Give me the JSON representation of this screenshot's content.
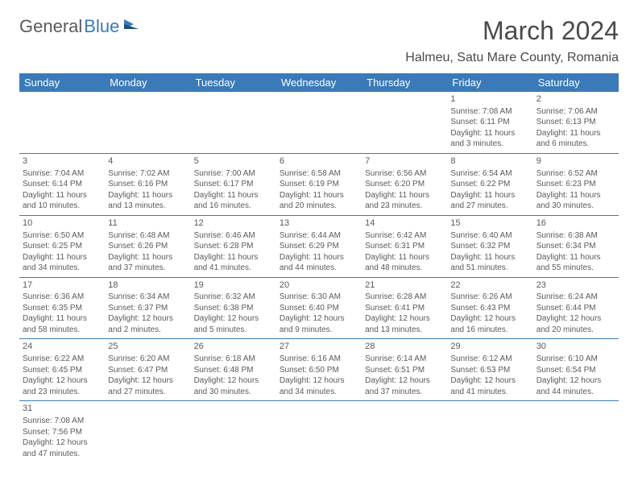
{
  "logo": {
    "text1": "General",
    "text2": "Blue"
  },
  "title": "March 2024",
  "location": "Halmeu, Satu Mare County, Romania",
  "colors": {
    "header_bg": "#3a7ab8",
    "header_fg": "#ffffff",
    "text": "#5a5a5a",
    "rule": "#3a7ab8"
  },
  "weekdays": [
    "Sunday",
    "Monday",
    "Tuesday",
    "Wednesday",
    "Thursday",
    "Friday",
    "Saturday"
  ],
  "weeks": [
    [
      null,
      null,
      null,
      null,
      null,
      {
        "n": "1",
        "sr": "Sunrise: 7:08 AM",
        "ss": "Sunset: 6:11 PM",
        "d1": "Daylight: 11 hours",
        "d2": "and 3 minutes."
      },
      {
        "n": "2",
        "sr": "Sunrise: 7:06 AM",
        "ss": "Sunset: 6:13 PM",
        "d1": "Daylight: 11 hours",
        "d2": "and 6 minutes."
      }
    ],
    [
      {
        "n": "3",
        "sr": "Sunrise: 7:04 AM",
        "ss": "Sunset: 6:14 PM",
        "d1": "Daylight: 11 hours",
        "d2": "and 10 minutes."
      },
      {
        "n": "4",
        "sr": "Sunrise: 7:02 AM",
        "ss": "Sunset: 6:16 PM",
        "d1": "Daylight: 11 hours",
        "d2": "and 13 minutes."
      },
      {
        "n": "5",
        "sr": "Sunrise: 7:00 AM",
        "ss": "Sunset: 6:17 PM",
        "d1": "Daylight: 11 hours",
        "d2": "and 16 minutes."
      },
      {
        "n": "6",
        "sr": "Sunrise: 6:58 AM",
        "ss": "Sunset: 6:19 PM",
        "d1": "Daylight: 11 hours",
        "d2": "and 20 minutes."
      },
      {
        "n": "7",
        "sr": "Sunrise: 6:56 AM",
        "ss": "Sunset: 6:20 PM",
        "d1": "Daylight: 11 hours",
        "d2": "and 23 minutes."
      },
      {
        "n": "8",
        "sr": "Sunrise: 6:54 AM",
        "ss": "Sunset: 6:22 PM",
        "d1": "Daylight: 11 hours",
        "d2": "and 27 minutes."
      },
      {
        "n": "9",
        "sr": "Sunrise: 6:52 AM",
        "ss": "Sunset: 6:23 PM",
        "d1": "Daylight: 11 hours",
        "d2": "and 30 minutes."
      }
    ],
    [
      {
        "n": "10",
        "sr": "Sunrise: 6:50 AM",
        "ss": "Sunset: 6:25 PM",
        "d1": "Daylight: 11 hours",
        "d2": "and 34 minutes."
      },
      {
        "n": "11",
        "sr": "Sunrise: 6:48 AM",
        "ss": "Sunset: 6:26 PM",
        "d1": "Daylight: 11 hours",
        "d2": "and 37 minutes."
      },
      {
        "n": "12",
        "sr": "Sunrise: 6:46 AM",
        "ss": "Sunset: 6:28 PM",
        "d1": "Daylight: 11 hours",
        "d2": "and 41 minutes."
      },
      {
        "n": "13",
        "sr": "Sunrise: 6:44 AM",
        "ss": "Sunset: 6:29 PM",
        "d1": "Daylight: 11 hours",
        "d2": "and 44 minutes."
      },
      {
        "n": "14",
        "sr": "Sunrise: 6:42 AM",
        "ss": "Sunset: 6:31 PM",
        "d1": "Daylight: 11 hours",
        "d2": "and 48 minutes."
      },
      {
        "n": "15",
        "sr": "Sunrise: 6:40 AM",
        "ss": "Sunset: 6:32 PM",
        "d1": "Daylight: 11 hours",
        "d2": "and 51 minutes."
      },
      {
        "n": "16",
        "sr": "Sunrise: 6:38 AM",
        "ss": "Sunset: 6:34 PM",
        "d1": "Daylight: 11 hours",
        "d2": "and 55 minutes."
      }
    ],
    [
      {
        "n": "17",
        "sr": "Sunrise: 6:36 AM",
        "ss": "Sunset: 6:35 PM",
        "d1": "Daylight: 11 hours",
        "d2": "and 58 minutes."
      },
      {
        "n": "18",
        "sr": "Sunrise: 6:34 AM",
        "ss": "Sunset: 6:37 PM",
        "d1": "Daylight: 12 hours",
        "d2": "and 2 minutes."
      },
      {
        "n": "19",
        "sr": "Sunrise: 6:32 AM",
        "ss": "Sunset: 6:38 PM",
        "d1": "Daylight: 12 hours",
        "d2": "and 5 minutes."
      },
      {
        "n": "20",
        "sr": "Sunrise: 6:30 AM",
        "ss": "Sunset: 6:40 PM",
        "d1": "Daylight: 12 hours",
        "d2": "and 9 minutes."
      },
      {
        "n": "21",
        "sr": "Sunrise: 6:28 AM",
        "ss": "Sunset: 6:41 PM",
        "d1": "Daylight: 12 hours",
        "d2": "and 13 minutes."
      },
      {
        "n": "22",
        "sr": "Sunrise: 6:26 AM",
        "ss": "Sunset: 6:43 PM",
        "d1": "Daylight: 12 hours",
        "d2": "and 16 minutes."
      },
      {
        "n": "23",
        "sr": "Sunrise: 6:24 AM",
        "ss": "Sunset: 6:44 PM",
        "d1": "Daylight: 12 hours",
        "d2": "and 20 minutes."
      }
    ],
    [
      {
        "n": "24",
        "sr": "Sunrise: 6:22 AM",
        "ss": "Sunset: 6:45 PM",
        "d1": "Daylight: 12 hours",
        "d2": "and 23 minutes."
      },
      {
        "n": "25",
        "sr": "Sunrise: 6:20 AM",
        "ss": "Sunset: 6:47 PM",
        "d1": "Daylight: 12 hours",
        "d2": "and 27 minutes."
      },
      {
        "n": "26",
        "sr": "Sunrise: 6:18 AM",
        "ss": "Sunset: 6:48 PM",
        "d1": "Daylight: 12 hours",
        "d2": "and 30 minutes."
      },
      {
        "n": "27",
        "sr": "Sunrise: 6:16 AM",
        "ss": "Sunset: 6:50 PM",
        "d1": "Daylight: 12 hours",
        "d2": "and 34 minutes."
      },
      {
        "n": "28",
        "sr": "Sunrise: 6:14 AM",
        "ss": "Sunset: 6:51 PM",
        "d1": "Daylight: 12 hours",
        "d2": "and 37 minutes."
      },
      {
        "n": "29",
        "sr": "Sunrise: 6:12 AM",
        "ss": "Sunset: 6:53 PM",
        "d1": "Daylight: 12 hours",
        "d2": "and 41 minutes."
      },
      {
        "n": "30",
        "sr": "Sunrise: 6:10 AM",
        "ss": "Sunset: 6:54 PM",
        "d1": "Daylight: 12 hours",
        "d2": "and 44 minutes."
      }
    ],
    [
      {
        "n": "31",
        "sr": "Sunrise: 7:08 AM",
        "ss": "Sunset: 7:56 PM",
        "d1": "Daylight: 12 hours",
        "d2": "and 47 minutes."
      },
      null,
      null,
      null,
      null,
      null,
      null
    ]
  ]
}
